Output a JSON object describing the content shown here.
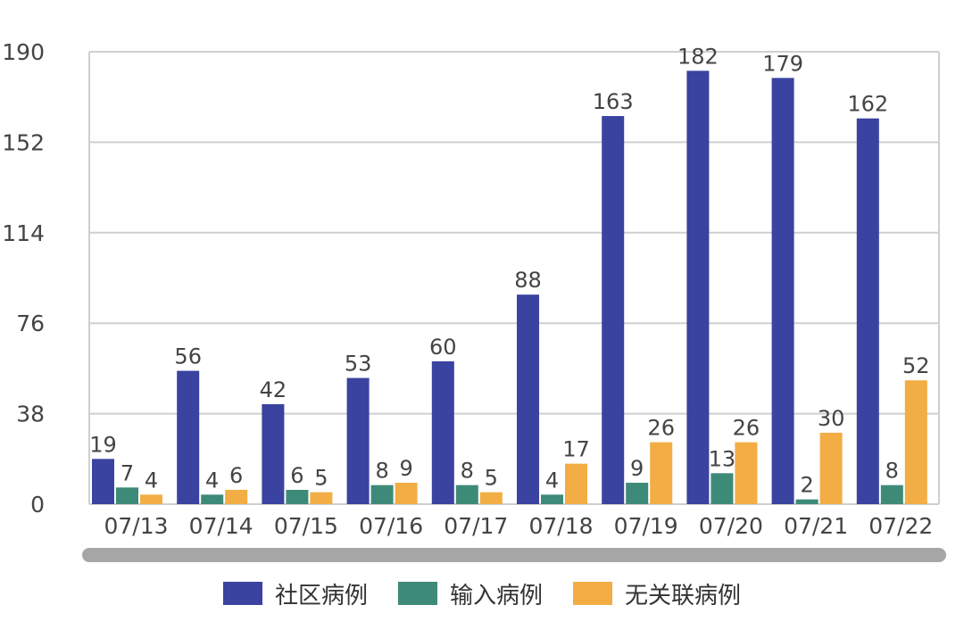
{
  "chart_data": {
    "type": "bar",
    "title": "",
    "xlabel": "",
    "ylabel": "",
    "categories": [
      "07/13",
      "07/14",
      "07/15",
      "07/16",
      "07/17",
      "07/18",
      "07/19",
      "07/20",
      "07/21",
      "07/22"
    ],
    "series": [
      {
        "name": "社区病例",
        "color": "#3a43a0",
        "values": [
          19,
          56,
          42,
          53,
          60,
          88,
          163,
          182,
          179,
          162
        ]
      },
      {
        "name": "输入病例",
        "color": "#3e8a78",
        "values": [
          7,
          4,
          6,
          8,
          8,
          4,
          9,
          13,
          2,
          8
        ]
      },
      {
        "name": "无关联病例",
        "color": "#f2ad44",
        "values": [
          4,
          6,
          5,
          9,
          5,
          17,
          26,
          26,
          30,
          52
        ]
      }
    ],
    "yticks": [
      0,
      38,
      76,
      114,
      152,
      190
    ],
    "ylim": [
      0,
      190
    ],
    "grid": true,
    "legend_position": "bottom-center",
    "data_labels": true
  }
}
